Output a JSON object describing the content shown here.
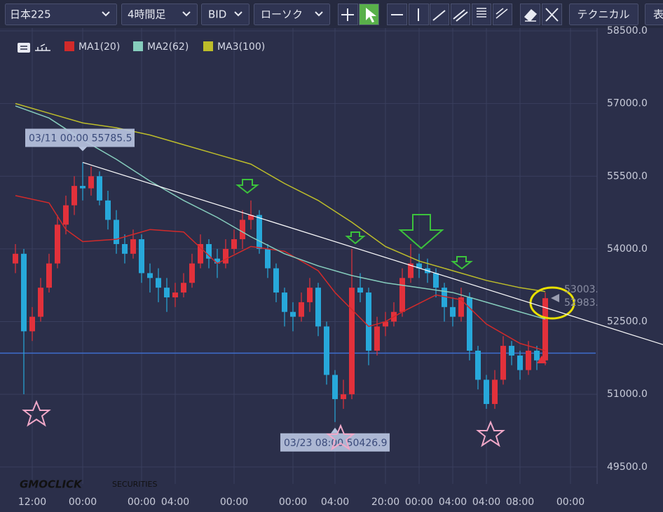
{
  "toolbar": {
    "symbol": "日本225",
    "timeframe": "4時間足",
    "price_side": "BID",
    "chart_style": "ローソク",
    "technical": "テクニカル",
    "table": "表"
  },
  "watermark": {
    "brand": "GMOCLICK",
    "sub": "SECURITIES"
  },
  "chart_data": {
    "type": "candlestick",
    "categories": [
      null,
      null,
      "12:00",
      null,
      null,
      null,
      null,
      null,
      "00:00",
      null,
      null,
      null,
      null,
      null,
      null,
      "00:00",
      null,
      null,
      null,
      "04:00",
      null,
      null,
      null,
      null,
      null,
      null,
      "00:00",
      null,
      null,
      null,
      null,
      null,
      null,
      "00:00",
      null,
      null,
      null,
      null,
      "04:00",
      null,
      null,
      null,
      null,
      null,
      "20:00",
      null,
      null,
      null,
      "00:00",
      null,
      null,
      null,
      "04:00",
      null,
      null,
      null,
      "04:00",
      null,
      null,
      null,
      "08:00",
      null,
      null,
      null,
      null,
      null,
      "00:00"
    ],
    "open": [
      53700,
      53900,
      52300,
      52600,
      53200,
      53700,
      54500,
      54900,
      55300,
      55250,
      55500,
      55000,
      54600,
      54100,
      53900,
      54200,
      53500,
      53400,
      53200,
      53000,
      53100,
      53300,
      53700,
      54100,
      53800,
      53700,
      54000,
      54200,
      54600,
      54700,
      54000,
      53600,
      53100,
      52700,
      52600,
      52900,
      53200,
      52400,
      51400,
      50900,
      51000,
      53200,
      53100,
      51900,
      52400,
      52500,
      52700,
      53400,
      53700,
      53600,
      53500,
      53200,
      52800,
      52600,
      53000,
      51900,
      51300,
      50800,
      51300,
      52000,
      51800,
      51500,
      51900,
      51700,
      null,
      null,
      null
    ],
    "high": [
      54100,
      54000,
      52800,
      53400,
      53900,
      54700,
      55100,
      55500,
      55785.5,
      55700,
      55600,
      55200,
      54800,
      54300,
      54400,
      54300,
      53700,
      53600,
      53400,
      53300,
      53500,
      53900,
      54300,
      54200,
      54000,
      54200,
      54400,
      54800,
      55000,
      54800,
      54100,
      53700,
      53200,
      52900,
      53100,
      53400,
      53300,
      52500,
      51500,
      51300,
      54000,
      53500,
      53200,
      52600,
      52700,
      52900,
      53600,
      54100,
      53900,
      53800,
      53600,
      53300,
      53000,
      53200,
      53100,
      52000,
      51400,
      51500,
      52200,
      52100,
      51900,
      52100,
      52000,
      53100,
      null,
      null,
      null
    ],
    "low": [
      53500,
      51000,
      52100,
      52500,
      53100,
      53600,
      54300,
      54700,
      55000,
      55100,
      54900,
      54400,
      53900,
      53700,
      53800,
      53300,
      53100,
      52900,
      52700,
      52800,
      53000,
      53200,
      53600,
      53600,
      53400,
      53600,
      53900,
      54000,
      54400,
      53900,
      53400,
      52900,
      52400,
      52300,
      52500,
      52700,
      52200,
      51200,
      50426.9,
      50700,
      50900,
      52900,
      51600,
      51800,
      52200,
      52400,
      52600,
      53300,
      53400,
      53300,
      53000,
      52500,
      52400,
      52500,
      51700,
      51100,
      50700,
      50700,
      51200,
      51600,
      51300,
      51400,
      51500,
      51600,
      null,
      null,
      null
    ],
    "close": [
      53900,
      52300,
      52600,
      53200,
      53700,
      54500,
      54900,
      55300,
      55250,
      55500,
      55000,
      54600,
      54100,
      53900,
      54200,
      53500,
      53400,
      53200,
      53000,
      53100,
      53300,
      53700,
      54100,
      53800,
      53700,
      54000,
      54200,
      54600,
      54700,
      54000,
      53600,
      53100,
      52700,
      52600,
      52900,
      53200,
      52400,
      51400,
      50900,
      51000,
      53200,
      53100,
      51900,
      52400,
      52500,
      52700,
      53400,
      53700,
      53600,
      53500,
      53200,
      52800,
      52600,
      53000,
      51900,
      51300,
      50800,
      51300,
      52000,
      51800,
      51500,
      51900,
      51700,
      52983,
      null,
      null,
      null
    ],
    "up_color": "#e2313b",
    "down_color": "#27a8da",
    "ylim": [
      49150,
      58630
    ],
    "yticks": [
      {
        "value": 49500,
        "label": "49500.0"
      },
      {
        "value": 51000,
        "label": "51000.0"
      },
      {
        "value": 52500,
        "label": "52500.0"
      },
      {
        "value": 54000,
        "label": "54000.0"
      },
      {
        "value": 55500,
        "label": "55500.0"
      },
      {
        "value": 57000,
        "label": "57000.0"
      },
      {
        "value": 58500,
        "label": "58500.0"
      }
    ],
    "grid": true,
    "series": [
      {
        "name": "MA1(20)",
        "color": "#d22a2a",
        "x": [
          0,
          4,
          6,
          8,
          12,
          16,
          20,
          24,
          28,
          32,
          36,
          38,
          42,
          44,
          46,
          50,
          53,
          56,
          60,
          63
        ],
        "values": [
          55100,
          54950,
          54400,
          54150,
          54200,
          54400,
          54350,
          53700,
          54050,
          53950,
          53550,
          53100,
          52400,
          52500,
          52700,
          53050,
          52950,
          52450,
          52050,
          51900
        ]
      },
      {
        "name": "MA2(62)",
        "color": "#86cdbd",
        "x": [
          0,
          4,
          8,
          12,
          16,
          20,
          24,
          28,
          32,
          36,
          40,
          44,
          48,
          52,
          56,
          60,
          63
        ],
        "values": [
          56950,
          56700,
          56250,
          55850,
          55400,
          55000,
          54650,
          54250,
          53900,
          53650,
          53450,
          53300,
          53200,
          53100,
          52900,
          52700,
          52550
        ]
      },
      {
        "name": "MA3(100)",
        "color": "#bdbd2a",
        "x": [
          0,
          4,
          8,
          12,
          16,
          20,
          24,
          28,
          32,
          36,
          40,
          44,
          48,
          52,
          56,
          60,
          63
        ],
        "values": [
          57000,
          56800,
          56600,
          56500,
          56350,
          56150,
          55950,
          55750,
          55350,
          55000,
          54550,
          54050,
          53750,
          53550,
          53350,
          53200,
          53120
        ]
      }
    ],
    "trendline": {
      "x": [
        8,
        77
      ],
      "values": [
        55785.5,
        52025
      ],
      "color": "#ffffff"
    },
    "hline": {
      "value": 51850,
      "color": "#3e6fcf"
    },
    "annotations": [
      {
        "label": "03/11 00:00 55785.5",
        "x": 8,
        "value": 55785.5,
        "placement": "above"
      },
      {
        "label": "03/23 08:00 50426.9",
        "x": 38,
        "value": 50426.9,
        "placement": "below"
      }
    ],
    "last_price_labels": [
      "53003.",
      "52983."
    ]
  }
}
